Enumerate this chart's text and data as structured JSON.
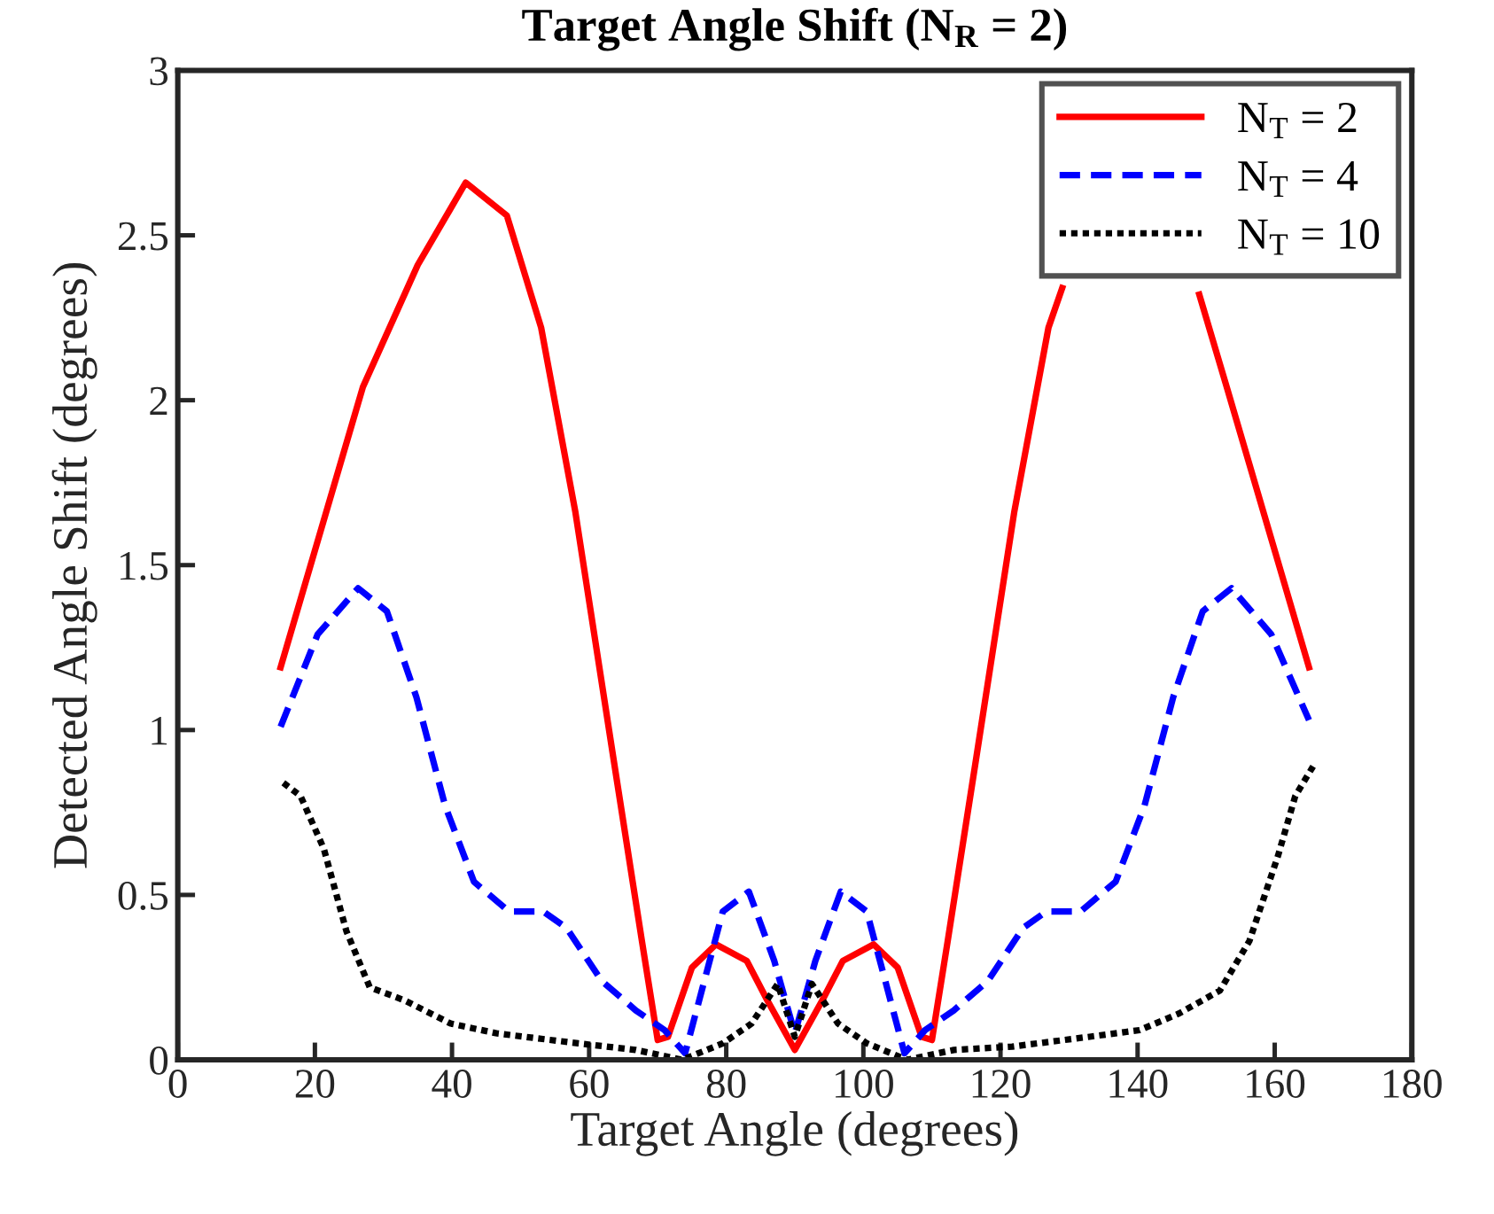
{
  "chart_data": {
    "type": "line",
    "title": "Target Angle Shift (N$_{R}$ = 2)",
    "xlabel": "Target Angle (degrees)",
    "ylabel": "Detected Angle Shift (degrees)",
    "xlim": [
      0,
      180
    ],
    "xticks": [
      0,
      20,
      40,
      60,
      80,
      100,
      120,
      140,
      160,
      180
    ],
    "ylim": [
      0,
      3
    ],
    "yticks": [
      0,
      0.5,
      1,
      1.5,
      2,
      2.5,
      3
    ],
    "grid": false,
    "legend": "top right",
    "series": [
      {
        "name": "N$_{T}$ = 2",
        "color": "#ff0000",
        "line_style": "solid",
        "x": [
          15,
          27,
          35,
          42,
          48,
          53,
          58,
          63.5,
          67.7,
          70,
          71.5,
          75,
          78.5,
          83,
          86,
          90,
          94,
          97,
          101.5,
          105,
          108.5,
          110,
          112.3,
          116.5,
          122,
          127,
          129,
          132,
          138,
          145,
          149,
          153,
          165
        ],
        "values": [
          1.19,
          2.04,
          2.41,
          2.66,
          2.56,
          2.22,
          1.66,
          0.92,
          0.36,
          0.06,
          0.07,
          0.28,
          0.35,
          0.3,
          0.18,
          0.03,
          0.18,
          0.3,
          0.35,
          0.28,
          0.07,
          0.06,
          0.36,
          0.92,
          1.66,
          2.22,
          2.34,
          null,
          null,
          null,
          2.32,
          2.04,
          1.19
        ]
      },
      {
        "name": "N$_{T}$ = 4",
        "color": "#0000ff",
        "line_style": "dashed",
        "x": [
          15,
          20.4,
          26.3,
          30.5,
          34.8,
          39,
          43.2,
          48.3,
          53.3,
          56.7,
          61.8,
          66.8,
          71,
          74,
          79.5,
          83.3,
          87,
          90,
          93,
          96.7,
          100.5,
          106,
          109,
          113.2,
          118.2,
          123.3,
          126.7,
          131.7,
          136.8,
          141,
          145.2,
          149.5,
          153.7,
          159.5,
          165
        ],
        "values": [
          1.01,
          1.29,
          1.43,
          1.36,
          1.1,
          0.77,
          0.54,
          0.45,
          0.45,
          0.4,
          0.24,
          0.15,
          0.09,
          0.02,
          0.45,
          0.51,
          0.3,
          0.08,
          0.3,
          0.51,
          0.45,
          0.02,
          0.09,
          0.15,
          0.24,
          0.4,
          0.45,
          0.45,
          0.54,
          0.77,
          1.1,
          1.36,
          1.43,
          1.29,
          1.03
        ]
      },
      {
        "name": "N$_{T}$ = 10",
        "color": "#000000",
        "line_style": "dotted",
        "x": [
          15.4,
          17.9,
          21.3,
          24.6,
          28,
          33.1,
          39.8,
          46.6,
          58.4,
          66.8,
          73.6,
          79.5,
          83.7,
          87.5,
          90,
          92.5,
          96.3,
          100.5,
          106.4,
          113.2,
          121.7,
          133,
          140.3,
          146,
          152,
          156.3,
          160.5,
          163,
          165.6
        ],
        "values": [
          0.84,
          0.8,
          0.64,
          0.39,
          0.22,
          0.18,
          0.11,
          0.08,
          0.05,
          0.03,
          0.0,
          0.05,
          0.11,
          0.23,
          0.07,
          0.23,
          0.11,
          0.05,
          0.0,
          0.03,
          0.04,
          0.07,
          0.09,
          0.14,
          0.21,
          0.36,
          0.62,
          0.8,
          0.89
        ]
      }
    ]
  }
}
